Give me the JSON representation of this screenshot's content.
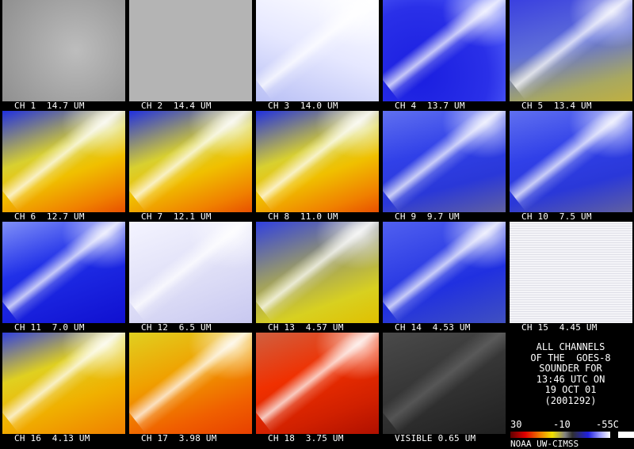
{
  "panels": [
    "CH 1  14.7 UM",
    "CH 2  14.4 UM",
    "CH 3  14.0 UM",
    "CH 4  13.7 UM",
    "CH 5  13.4 UM",
    "CH 6  12.7 UM",
    "CH 7  12.1 UM",
    "CH 8  11.0 UM",
    "CH 9  9.7 UM",
    "CH 10  7.5 UM",
    "CH 11  7.0 UM",
    "CH 12  6.5 UM",
    "CH 13  4.57 UM",
    "CH 14  4.53 UM",
    "CH 15  4.45 UM",
    "CH 16  4.13 UM",
    "CH 17  3.98 UM",
    "CH 18  3.75 UM",
    "VISIBLE 0.65 UM"
  ],
  "info": {
    "lines": [
      "ALL CHANNELS",
      "OF THE  GOES-8",
      "SOUNDER FOR",
      "13:46 UTC ON",
      "19 OCT 01",
      "(2001292)"
    ],
    "colorbar_labels": [
      "30",
      "-10",
      "-55C"
    ],
    "credit": "NOAA UW-CIMSS"
  }
}
